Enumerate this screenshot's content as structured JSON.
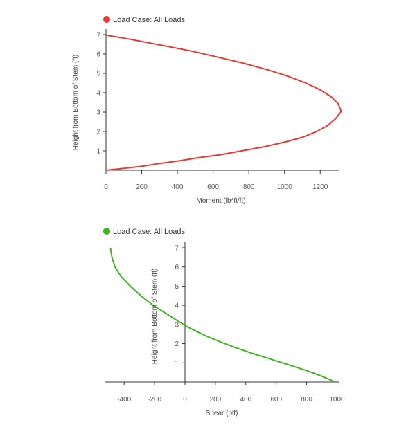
{
  "chart_data": [
    {
      "type": "line",
      "legend": "Load Case: All Loads",
      "legend_position": "top-left",
      "xlabel": "Moment (lb*ft/ft)",
      "ylabel": "Height from Bottom of Stem (ft)",
      "xlim": [
        0,
        1300
      ],
      "ylim": [
        0,
        7
      ],
      "xticks": [
        0,
        200,
        400,
        600,
        800,
        1000,
        1200
      ],
      "yticks": [
        1,
        2,
        3,
        4,
        5,
        6,
        7
      ],
      "grid": false,
      "color": "#e8392f",
      "series": [
        {
          "x": [
            0,
            100,
            200,
            300,
            420,
            520,
            640,
            760,
            880,
            1000,
            1100,
            1180,
            1240,
            1285,
            1315,
            1315,
            1300,
            1260,
            1200,
            1120,
            1020,
            900,
            760,
            620,
            480,
            340,
            200,
            80,
            0
          ],
          "y": [
            0,
            0.1,
            0.2,
            0.35,
            0.5,
            0.65,
            0.8,
            1.0,
            1.2,
            1.45,
            1.7,
            2.0,
            2.3,
            2.65,
            3.0,
            3.1,
            3.45,
            3.8,
            4.15,
            4.5,
            4.85,
            5.2,
            5.55,
            5.85,
            6.15,
            6.4,
            6.65,
            6.85,
            6.97
          ]
        }
      ]
    },
    {
      "type": "line",
      "legend": "Load Case: All Loads",
      "legend_position": "top-left",
      "xlabel": "Shear (plf)",
      "ylabel": "Height from Bottom of Stem (ft)",
      "xlim": [
        -520,
        1000
      ],
      "ylim": [
        0,
        7
      ],
      "xticks": [
        -400,
        -200,
        0,
        200,
        400,
        600,
        800,
        1000
      ],
      "yticks": [
        1,
        2,
        3,
        4,
        5,
        6,
        7
      ],
      "grid": false,
      "color": "#3db51f",
      "series": [
        {
          "x": [
            -490,
            -480,
            -460,
            -420,
            -360,
            -290,
            -210,
            -120,
            -40,
            0,
            60,
            140,
            230,
            330,
            440,
            560,
            680,
            800,
            900,
            960,
            980
          ],
          "y": [
            7.0,
            6.5,
            6.0,
            5.5,
            5.0,
            4.5,
            4.0,
            3.55,
            3.15,
            2.95,
            2.7,
            2.4,
            2.1,
            1.8,
            1.5,
            1.2,
            0.9,
            0.6,
            0.3,
            0.1,
            0.0
          ]
        }
      ]
    }
  ]
}
